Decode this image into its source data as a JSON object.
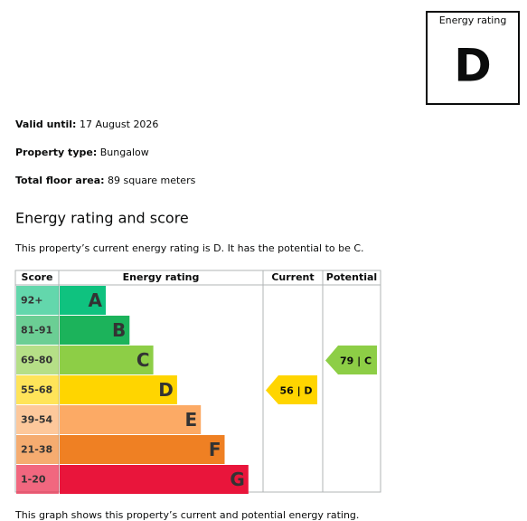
{
  "badge": {
    "title": "Energy rating",
    "rating": "D"
  },
  "details": [
    {
      "label": "Valid until:",
      "value": "17 August 2026"
    },
    {
      "label": "Property type:",
      "value": "Bungalow"
    },
    {
      "label": "Total floor area:",
      "value": "89 square meters"
    }
  ],
  "heading": "Energy rating and score",
  "summary": "This property’s current energy rating is D. It has the potential to be C.",
  "table": {
    "headers": [
      "Score",
      "Energy rating",
      "Current",
      "Potential"
    ],
    "bands": [
      {
        "score": "92+",
        "rating": "A",
        "color": "#0fc27f"
      },
      {
        "score": "81-91",
        "rating": "B",
        "color": "#1cb35b"
      },
      {
        "score": "69-80",
        "rating": "C",
        "color": "#8dce46"
      },
      {
        "score": "55-68",
        "rating": "D",
        "color": "#ffd500"
      },
      {
        "score": "39-54",
        "rating": "E",
        "color": "#fcaa65"
      },
      {
        "score": "21-38",
        "rating": "F",
        "color": "#ef8023"
      },
      {
        "score": "1-20",
        "rating": "G",
        "color": "#e9153b"
      }
    ],
    "current": "56 | D",
    "potential": "79 | C"
  },
  "footnote": "This graph shows this property’s current and potential energy rating."
}
